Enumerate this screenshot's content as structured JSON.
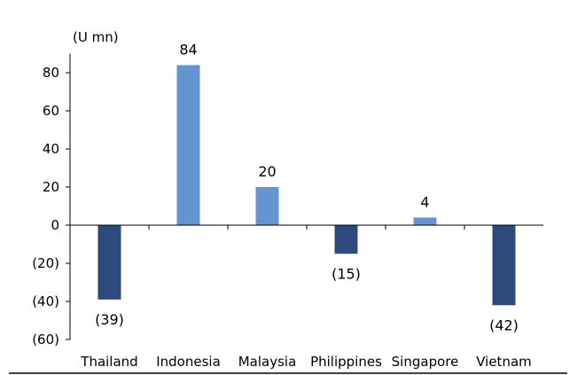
{
  "chart_data": {
    "type": "bar",
    "unit_label": "(U mn)",
    "categories": [
      "Thailand",
      "Indonesia",
      "Malaysia",
      "Philippines",
      "Singapore",
      "Vietnam"
    ],
    "values": [
      -39,
      84,
      20,
      -15,
      4,
      -42
    ],
    "data_labels": [
      "(39)",
      "84",
      "20",
      "(15)",
      "4",
      "(42)"
    ],
    "ylim": [
      -60,
      90
    ],
    "yticks": [
      80,
      60,
      40,
      20,
      0,
      -20,
      -40,
      -60
    ],
    "ytick_labels": [
      "80",
      "60",
      "40",
      "20",
      "0",
      "(20)",
      "(40)",
      "(60)"
    ],
    "colors": {
      "positive": "#6495d0",
      "negative": "#2c4a7c"
    },
    "grid": false,
    "legend": "none"
  }
}
